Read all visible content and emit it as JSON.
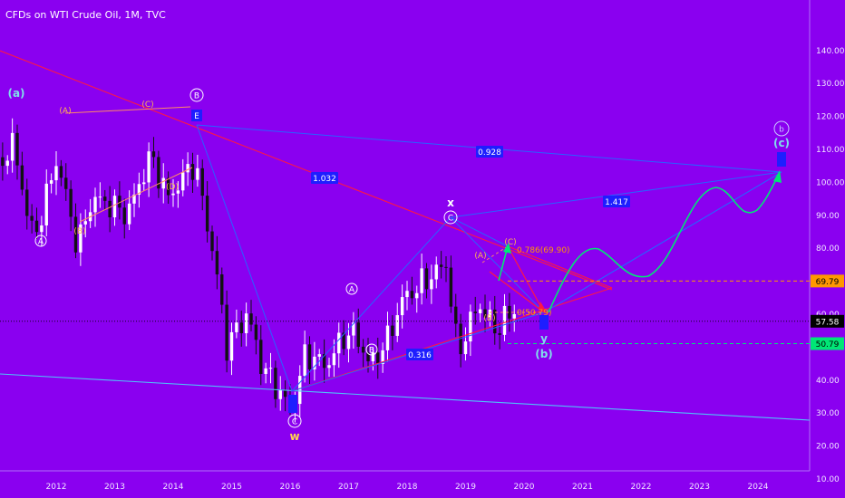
{
  "header": {
    "title": "CFDs on WTI Crude Oil, 1M, TVC"
  },
  "colors": {
    "background": "#8a00f0",
    "up_candle": "#ffffff",
    "down_candle": "#111111",
    "red_line": "#ff1744",
    "blue_line": "#2962ff",
    "cyan_line": "#4fc3f7",
    "green_line": "#00e676",
    "orange_level": "#ff9800",
    "green_level": "#00e676",
    "label_box": "#1e1eff",
    "wave_orange": "#ffb74d",
    "wave_cyan": "#80deea"
  },
  "chart_data": {
    "type": "candlestick",
    "symbol": "CFDs on WTI Crude Oil",
    "interval": "1M",
    "source": "TVC",
    "ylim": [
      0,
      145
    ],
    "y_ticks": [
      10,
      20,
      30,
      40,
      50,
      60,
      70,
      80,
      90,
      100,
      110,
      120,
      130,
      140
    ],
    "y_tick_labels": [
      "10.00",
      "20.00",
      "30.00",
      "40.00",
      "50.00",
      "60.00",
      "70.00",
      "80.00",
      "90.00",
      "100.00",
      "110.00",
      "120.00",
      "130.00",
      "140.00"
    ],
    "x_year_labels": [
      "2012",
      "2013",
      "2014",
      "2015",
      "2016",
      "2017",
      "2018",
      "2019",
      "2020",
      "2021",
      "2022",
      "2023",
      "2024"
    ],
    "current_price": "57.58",
    "levels": [
      {
        "price": 69.79,
        "label": "69.79",
        "color": "#ff9800"
      },
      {
        "price": 50.79,
        "label": "50.79",
        "color": "#00e676"
      }
    ],
    "fib_labels": {
      "f786": "0.786(69.90)",
      "f0": "0(50.79)"
    },
    "ratio_boxes": [
      "0.928",
      "1.032",
      "1.417",
      "0.316"
    ],
    "wave_labels": {
      "a_cyan": "(a)",
      "A_2011": "(A)",
      "C_2013": "(C)",
      "B_circle_2014": "B",
      "E_2014": "E",
      "D_2014": "(D)",
      "B_2012": "(B)",
      "A_circle_2011": "A",
      "A_circle_2017": "A",
      "B_circle_2017": "B",
      "C_circle_2016": "C",
      "w_label": "w",
      "C_circle_2018": "C",
      "x_label": "x",
      "A_2019": "(A)",
      "B_2019": "(B)",
      "C_2019": "(C)",
      "y_label": "y",
      "b_cyan": "(b)",
      "b_circle_2024": "b",
      "c_cyan": "(c)"
    },
    "candles": []
  }
}
